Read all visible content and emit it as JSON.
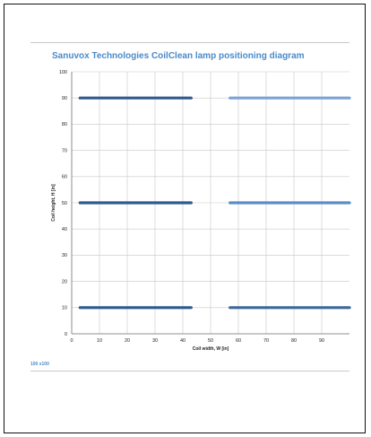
{
  "title": "Sanuvox Technologies CoilClean lamp positioning diagram",
  "footer_code": "100 x100",
  "chart_data": {
    "type": "line",
    "title": "Sanuvox Technologies CoilClean lamp positioning diagram",
    "xlabel": "Coil width, W [in]",
    "ylabel": "Coil height, H [in]",
    "xlim": [
      0,
      100
    ],
    "ylim": [
      0,
      100
    ],
    "xticks": [
      0,
      10,
      20,
      30,
      40,
      50,
      60,
      70,
      80,
      90
    ],
    "yticks": [
      0,
      10,
      20,
      30,
      40,
      50,
      60,
      70,
      80,
      90,
      100
    ],
    "grid": true,
    "series": [
      {
        "color": "#2e5b8e",
        "points": [
          [
            3,
            90
          ],
          [
            43,
            90
          ]
        ]
      },
      {
        "color": "#2e5b8e",
        "points": [
          [
            3,
            50
          ],
          [
            43,
            50
          ]
        ]
      },
      {
        "color": "#2e5b8e",
        "points": [
          [
            3,
            10
          ],
          [
            43,
            10
          ]
        ]
      },
      {
        "color": "#7ba3d4",
        "points": [
          [
            57,
            90
          ],
          [
            100,
            90
          ]
        ]
      },
      {
        "color": "#5a8dc8",
        "points": [
          [
            57,
            50
          ],
          [
            100,
            50
          ]
        ]
      },
      {
        "color": "#3d6899",
        "points": [
          [
            57,
            10
          ],
          [
            100,
            10
          ]
        ]
      }
    ]
  }
}
